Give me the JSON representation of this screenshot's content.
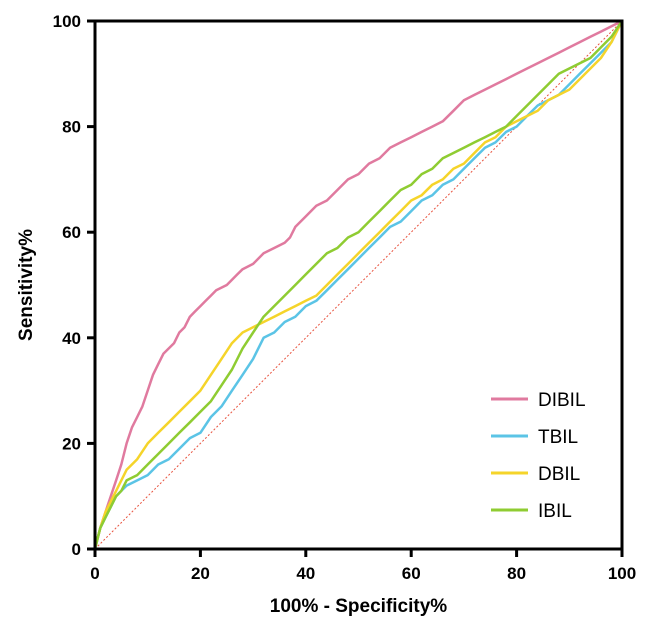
{
  "chart_data": {
    "type": "line",
    "title": "",
    "xlabel": "100% - Specificity%",
    "ylabel": "Sensitivity%",
    "xlim": [
      0,
      100
    ],
    "ylim": [
      0,
      100
    ],
    "x_ticks": [
      0,
      20,
      40,
      60,
      80,
      100
    ],
    "y_ticks": [
      0,
      20,
      40,
      60,
      80,
      100
    ],
    "grid": false,
    "legend_position": "bottom-right",
    "reference_line": {
      "points": [
        [
          0,
          0
        ],
        [
          100,
          100
        ]
      ],
      "color": "#e8533f",
      "style": "dotted"
    },
    "series": [
      {
        "name": "DIBIL",
        "color": "#e07a9f",
        "points": [
          [
            0,
            0
          ],
          [
            0.5,
            2
          ],
          [
            1,
            4
          ],
          [
            2,
            7
          ],
          [
            3,
            10
          ],
          [
            4,
            13
          ],
          [
            5,
            16
          ],
          [
            6,
            20
          ],
          [
            7,
            23
          ],
          [
            8,
            25
          ],
          [
            9,
            27
          ],
          [
            10,
            30
          ],
          [
            11,
            33
          ],
          [
            12,
            35
          ],
          [
            13,
            37
          ],
          [
            14,
            38
          ],
          [
            15,
            39
          ],
          [
            16,
            41
          ],
          [
            17,
            42
          ],
          [
            18,
            44
          ],
          [
            19,
            45
          ],
          [
            20,
            46
          ],
          [
            21,
            47
          ],
          [
            22,
            48
          ],
          [
            23,
            49
          ],
          [
            25,
            50
          ],
          [
            26,
            51
          ],
          [
            27,
            52
          ],
          [
            28,
            53
          ],
          [
            30,
            54
          ],
          [
            32,
            56
          ],
          [
            34,
            57
          ],
          [
            36,
            58
          ],
          [
            37,
            59
          ],
          [
            38,
            61
          ],
          [
            40,
            63
          ],
          [
            42,
            65
          ],
          [
            44,
            66
          ],
          [
            46,
            68
          ],
          [
            48,
            70
          ],
          [
            50,
            71
          ],
          [
            52,
            73
          ],
          [
            54,
            74
          ],
          [
            56,
            76
          ],
          [
            58,
            77
          ],
          [
            60,
            78
          ],
          [
            62,
            79
          ],
          [
            64,
            80
          ],
          [
            66,
            81
          ],
          [
            68,
            83
          ],
          [
            70,
            85
          ],
          [
            72,
            86
          ],
          [
            74,
            87
          ],
          [
            76,
            88
          ],
          [
            78,
            89
          ],
          [
            80,
            90
          ],
          [
            82,
            91
          ],
          [
            84,
            92
          ],
          [
            86,
            93
          ],
          [
            88,
            94
          ],
          [
            90,
            95
          ],
          [
            92,
            96
          ],
          [
            94,
            97
          ],
          [
            96,
            98
          ],
          [
            98,
            99
          ],
          [
            100,
            100
          ]
        ]
      },
      {
        "name": "TBIL",
        "color": "#5bc4e6",
        "points": [
          [
            0,
            0
          ],
          [
            0.5,
            2
          ],
          [
            1,
            4
          ],
          [
            2,
            6
          ],
          [
            3,
            8
          ],
          [
            4,
            10
          ],
          [
            5,
            11
          ],
          [
            6,
            12
          ],
          [
            8,
            13
          ],
          [
            10,
            14
          ],
          [
            12,
            16
          ],
          [
            14,
            17
          ],
          [
            16,
            19
          ],
          [
            18,
            21
          ],
          [
            20,
            22
          ],
          [
            22,
            25
          ],
          [
            24,
            27
          ],
          [
            26,
            30
          ],
          [
            28,
            33
          ],
          [
            30,
            36
          ],
          [
            32,
            40
          ],
          [
            34,
            41
          ],
          [
            36,
            43
          ],
          [
            38,
            44
          ],
          [
            40,
            46
          ],
          [
            42,
            47
          ],
          [
            44,
            49
          ],
          [
            46,
            51
          ],
          [
            48,
            53
          ],
          [
            50,
            55
          ],
          [
            52,
            57
          ],
          [
            54,
            59
          ],
          [
            56,
            61
          ],
          [
            58,
            62
          ],
          [
            60,
            64
          ],
          [
            62,
            66
          ],
          [
            64,
            67
          ],
          [
            66,
            69
          ],
          [
            68,
            70
          ],
          [
            70,
            72
          ],
          [
            72,
            74
          ],
          [
            74,
            76
          ],
          [
            76,
            77
          ],
          [
            78,
            79
          ],
          [
            80,
            80
          ],
          [
            82,
            82
          ],
          [
            84,
            84
          ],
          [
            86,
            85
          ],
          [
            88,
            86
          ],
          [
            90,
            88
          ],
          [
            92,
            90
          ],
          [
            94,
            92
          ],
          [
            96,
            94
          ],
          [
            98,
            96
          ],
          [
            100,
            100
          ]
        ]
      },
      {
        "name": "DBIL",
        "color": "#f5d42a",
        "points": [
          [
            0,
            0
          ],
          [
            0.5,
            2
          ],
          [
            1,
            4
          ],
          [
            2,
            7
          ],
          [
            3,
            9
          ],
          [
            4,
            11
          ],
          [
            5,
            13
          ],
          [
            6,
            15
          ],
          [
            8,
            17
          ],
          [
            10,
            20
          ],
          [
            12,
            22
          ],
          [
            14,
            24
          ],
          [
            16,
            26
          ],
          [
            18,
            28
          ],
          [
            20,
            30
          ],
          [
            22,
            33
          ],
          [
            24,
            36
          ],
          [
            26,
            39
          ],
          [
            28,
            41
          ],
          [
            30,
            42
          ],
          [
            32,
            43
          ],
          [
            34,
            44
          ],
          [
            36,
            45
          ],
          [
            38,
            46
          ],
          [
            40,
            47
          ],
          [
            42,
            48
          ],
          [
            44,
            50
          ],
          [
            46,
            52
          ],
          [
            48,
            54
          ],
          [
            50,
            56
          ],
          [
            52,
            58
          ],
          [
            54,
            60
          ],
          [
            56,
            62
          ],
          [
            58,
            64
          ],
          [
            60,
            66
          ],
          [
            62,
            67
          ],
          [
            64,
            69
          ],
          [
            66,
            70
          ],
          [
            68,
            72
          ],
          [
            70,
            73
          ],
          [
            72,
            75
          ],
          [
            74,
            77
          ],
          [
            76,
            78
          ],
          [
            78,
            80
          ],
          [
            80,
            81
          ],
          [
            82,
            82
          ],
          [
            84,
            83
          ],
          [
            86,
            85
          ],
          [
            88,
            86
          ],
          [
            90,
            87
          ],
          [
            92,
            89
          ],
          [
            94,
            91
          ],
          [
            96,
            93
          ],
          [
            98,
            96
          ],
          [
            100,
            100
          ]
        ]
      },
      {
        "name": "IBIL",
        "color": "#8fcc32",
        "points": [
          [
            0,
            0
          ],
          [
            0.5,
            2
          ],
          [
            1,
            4
          ],
          [
            2,
            6
          ],
          [
            3,
            8
          ],
          [
            4,
            10
          ],
          [
            5,
            11
          ],
          [
            6,
            13
          ],
          [
            8,
            14
          ],
          [
            10,
            16
          ],
          [
            12,
            18
          ],
          [
            14,
            20
          ],
          [
            16,
            22
          ],
          [
            18,
            24
          ],
          [
            20,
            26
          ],
          [
            22,
            28
          ],
          [
            24,
            31
          ],
          [
            26,
            34
          ],
          [
            28,
            38
          ],
          [
            30,
            41
          ],
          [
            32,
            44
          ],
          [
            34,
            46
          ],
          [
            36,
            48
          ],
          [
            38,
            50
          ],
          [
            40,
            52
          ],
          [
            42,
            54
          ],
          [
            44,
            56
          ],
          [
            46,
            57
          ],
          [
            48,
            59
          ],
          [
            50,
            60
          ],
          [
            52,
            62
          ],
          [
            54,
            64
          ],
          [
            56,
            66
          ],
          [
            58,
            68
          ],
          [
            60,
            69
          ],
          [
            62,
            71
          ],
          [
            64,
            72
          ],
          [
            66,
            74
          ],
          [
            68,
            75
          ],
          [
            70,
            76
          ],
          [
            72,
            77
          ],
          [
            74,
            78
          ],
          [
            76,
            79
          ],
          [
            78,
            80
          ],
          [
            80,
            82
          ],
          [
            82,
            84
          ],
          [
            84,
            86
          ],
          [
            86,
            88
          ],
          [
            88,
            90
          ],
          [
            90,
            91
          ],
          [
            92,
            92
          ],
          [
            94,
            93
          ],
          [
            96,
            95
          ],
          [
            98,
            97
          ],
          [
            100,
            100
          ]
        ]
      }
    ]
  }
}
